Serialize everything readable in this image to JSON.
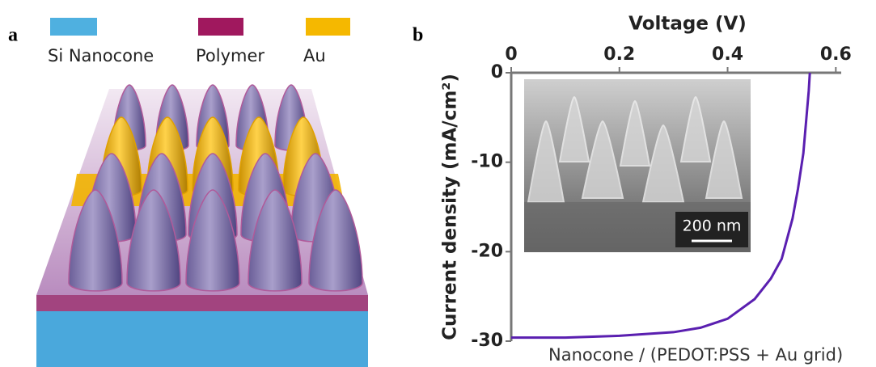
{
  "panel_a": {
    "label": "a",
    "legend": [
      {
        "name": "Si Nanocone",
        "color": "#4fb0e0"
      },
      {
        "name": "Polymer",
        "color": "#a0185e"
      },
      {
        "name": "Au",
        "color": "#f5b800"
      }
    ]
  },
  "chart_data": {
    "type": "line",
    "label": "b",
    "x_label": "Voltage (V)",
    "y_label": "Current density (mA/cm²)",
    "inset_scale_bar": "200 nm",
    "x": [
      0,
      0.1,
      0.2,
      0.3,
      0.35,
      0.4,
      0.45,
      0.48,
      0.5,
      0.52,
      0.53,
      0.54,
      0.55,
      0.552
    ],
    "series": [
      {
        "name": "Nanocone / (PEDOT:PSS + Au grid)",
        "color": "#5a1fb0",
        "values": [
          -29.6,
          -29.6,
          -29.4,
          -29.0,
          -28.5,
          -27.5,
          -25.3,
          -23.0,
          -20.8,
          -16.3,
          -13.0,
          -9.0,
          -2.0,
          0
        ]
      }
    ],
    "xlim": [
      0,
      0.61
    ],
    "ylim": [
      -30,
      0
    ],
    "xticks": [
      0,
      0.2,
      0.4,
      0.6
    ],
    "yticks": [
      0,
      -10,
      -20,
      -30
    ]
  }
}
